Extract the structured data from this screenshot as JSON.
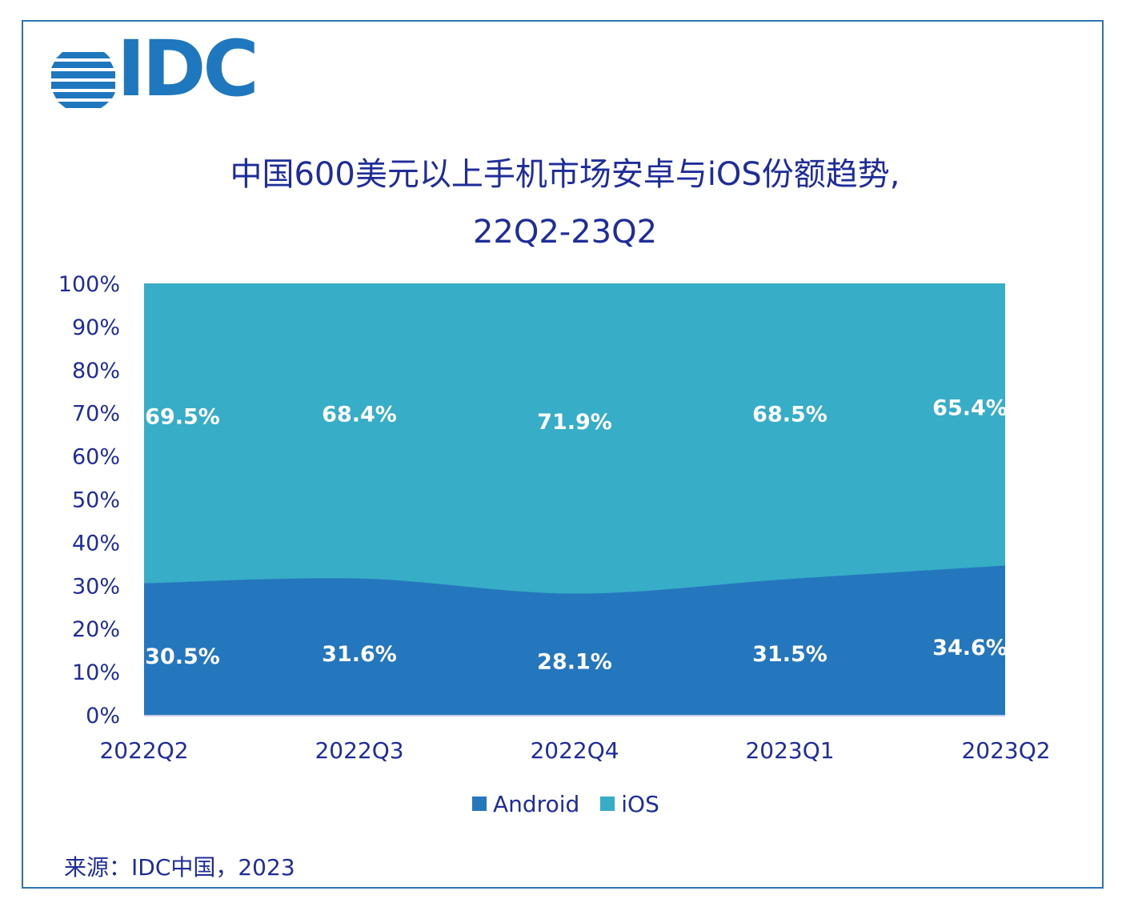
{
  "logo": {
    "text": "IDC"
  },
  "title_line1": "中国600美元以上手机市场安卓与iOS份额趋势,",
  "title_line2": "22Q2-23Q2",
  "source": "来源：IDC中国，2023",
  "colors": {
    "android": "#2477BD",
    "ios": "#37ADC8",
    "text": "#1F2D99",
    "frame": "#2E75B6"
  },
  "chart_data": {
    "type": "area",
    "stacked": true,
    "categories": [
      "2022Q2",
      "2022Q3",
      "2022Q4",
      "2023Q1",
      "2023Q2"
    ],
    "series": [
      {
        "name": "Android",
        "values": [
          30.5,
          31.6,
          28.1,
          31.5,
          34.6
        ],
        "labels": [
          "30.5%",
          "31.6%",
          "28.1%",
          "31.5%",
          "34.6%"
        ]
      },
      {
        "name": "iOS",
        "values": [
          69.5,
          68.4,
          71.9,
          68.5,
          65.4
        ],
        "labels": [
          "69.5%",
          "68.4%",
          "71.9%",
          "68.5%",
          "65.4%"
        ]
      }
    ],
    "yticks": [
      "0%",
      "10%",
      "20%",
      "30%",
      "40%",
      "50%",
      "60%",
      "70%",
      "80%",
      "90%",
      "100%"
    ],
    "ylim": [
      0,
      100
    ],
    "grid": false,
    "legend": "bottom"
  }
}
